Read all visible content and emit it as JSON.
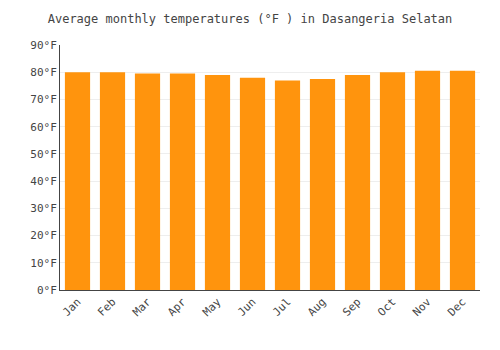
{
  "chart_data": {
    "type": "bar",
    "title": "Average monthly temperatures (°F ) in Dasangeria Selatan",
    "categories": [
      "Jan",
      "Feb",
      "Mar",
      "Apr",
      "May",
      "Jun",
      "Jul",
      "Aug",
      "Sep",
      "Oct",
      "Nov",
      "Dec"
    ],
    "values": [
      80.0,
      80.0,
      79.5,
      79.5,
      79.0,
      78.0,
      77.0,
      77.5,
      79.0,
      80.0,
      80.5,
      80.5
    ],
    "color": "#ff940d",
    "ylim": [
      0,
      90
    ],
    "yticks": [
      {
        "value": 0,
        "label": "0°F"
      },
      {
        "value": 10,
        "label": "10°F"
      },
      {
        "value": 20,
        "label": "20°F"
      },
      {
        "value": 30,
        "label": "30°F"
      },
      {
        "value": 40,
        "label": "40°F"
      },
      {
        "value": 50,
        "label": "50°F"
      },
      {
        "value": 60,
        "label": "60°F"
      },
      {
        "value": 70,
        "label": "70°F"
      },
      {
        "value": 80,
        "label": "80°F"
      },
      {
        "value": 90,
        "label": "90°F"
      }
    ],
    "grid": true
  }
}
